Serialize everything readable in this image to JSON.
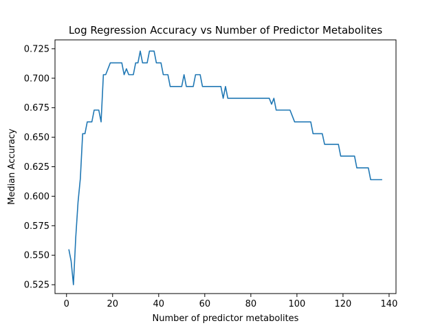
{
  "chart_data": {
    "type": "line",
    "title": "Log Regression Accuracy vs Number of Predictor Metabolites",
    "xlabel": "Number of predictor metabolites",
    "ylabel": "Median Accuracy",
    "xlim": [
      -5,
      143
    ],
    "ylim": [
      0.5175,
      0.7325
    ],
    "xticks": [
      0,
      20,
      40,
      60,
      80,
      100,
      120,
      140
    ],
    "xtick_labels": [
      "0",
      "20",
      "40",
      "60",
      "80",
      "100",
      "120",
      "140"
    ],
    "yticks": [
      0.525,
      0.55,
      0.575,
      0.6,
      0.625,
      0.65,
      0.675,
      0.7,
      0.725
    ],
    "ytick_labels": [
      "0.525",
      "0.550",
      "0.575",
      "0.600",
      "0.625",
      "0.650",
      "0.675",
      "0.700",
      "0.725"
    ],
    "grid": false,
    "line_color": "#1f77b4",
    "series": [
      {
        "x": [
          1,
          2,
          3,
          4,
          5,
          6,
          7,
          8,
          9,
          10,
          11,
          12,
          13,
          14,
          15,
          15.5,
          16,
          17,
          18,
          19,
          20,
          21,
          22,
          23,
          24,
          25,
          26,
          27,
          28,
          29,
          30,
          31,
          32,
          33,
          34,
          35,
          36,
          37,
          38,
          39,
          40,
          41,
          42,
          43,
          44,
          45,
          46,
          47,
          48,
          49,
          50,
          51,
          52,
          53,
          54,
          55,
          56,
          57,
          58,
          59,
          60,
          61,
          62,
          63,
          64,
          65,
          66,
          67,
          68,
          69,
          70,
          71,
          72,
          73,
          74,
          75,
          76,
          77,
          78,
          79,
          80,
          81,
          82,
          83,
          84,
          85,
          86,
          87,
          88,
          89,
          90,
          91,
          92,
          93,
          94,
          95,
          96,
          97,
          98,
          99,
          100,
          101,
          102,
          103,
          104,
          105,
          106,
          107,
          108,
          109,
          110,
          111,
          112,
          113,
          114,
          115,
          116,
          117,
          118,
          119,
          120,
          121,
          122,
          123,
          124,
          125,
          126,
          127,
          128,
          129,
          130,
          131,
          132,
          133,
          134,
          135,
          136,
          137
        ],
        "y": [
          0.555,
          0.545,
          0.525,
          0.565,
          0.595,
          0.615,
          0.653,
          0.653,
          0.663,
          0.663,
          0.663,
          0.673,
          0.673,
          0.673,
          0.663,
          0.683,
          0.703,
          0.703,
          0.708,
          0.713,
          0.713,
          0.713,
          0.713,
          0.713,
          0.713,
          0.703,
          0.708,
          0.703,
          0.703,
          0.703,
          0.713,
          0.713,
          0.723,
          0.713,
          0.713,
          0.713,
          0.723,
          0.723,
          0.723,
          0.713,
          0.713,
          0.713,
          0.703,
          0.703,
          0.703,
          0.693,
          0.693,
          0.693,
          0.693,
          0.693,
          0.693,
          0.703,
          0.693,
          0.693,
          0.693,
          0.693,
          0.703,
          0.703,
          0.703,
          0.693,
          0.693,
          0.693,
          0.693,
          0.693,
          0.693,
          0.693,
          0.693,
          0.693,
          0.683,
          0.693,
          0.683,
          0.683,
          0.683,
          0.683,
          0.683,
          0.683,
          0.683,
          0.683,
          0.683,
          0.683,
          0.683,
          0.683,
          0.683,
          0.683,
          0.683,
          0.683,
          0.683,
          0.683,
          0.683,
          0.678,
          0.683,
          0.673,
          0.673,
          0.673,
          0.673,
          0.673,
          0.673,
          0.673,
          0.668,
          0.663,
          0.663,
          0.663,
          0.663,
          0.663,
          0.663,
          0.663,
          0.663,
          0.653,
          0.653,
          0.653,
          0.653,
          0.653,
          0.644,
          0.644,
          0.644,
          0.644,
          0.644,
          0.644,
          0.644,
          0.634,
          0.634,
          0.634,
          0.634,
          0.634,
          0.634,
          0.634,
          0.624,
          0.624,
          0.624,
          0.624,
          0.624,
          0.624,
          0.614,
          0.614,
          0.614,
          0.614,
          0.614,
          0.614
        ]
      }
    ]
  }
}
